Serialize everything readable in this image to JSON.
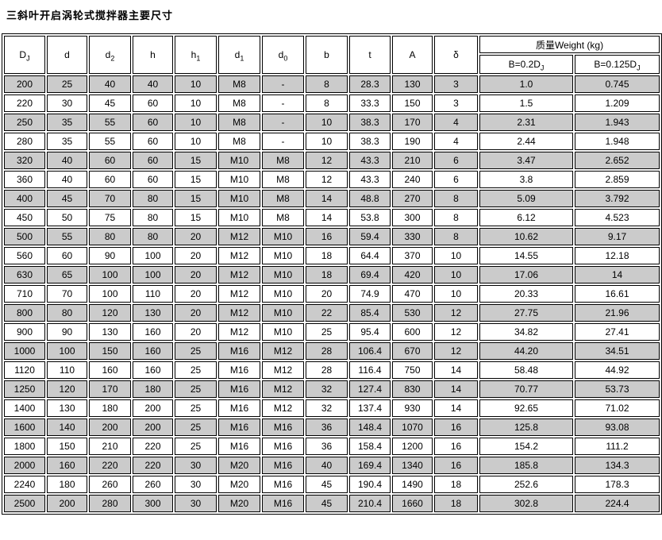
{
  "title": "三斜叶开启涡轮式搅拌器主要尺寸",
  "colors": {
    "row_shade": "#cbcbcb",
    "border": "#000000",
    "text": "#000000",
    "background": "#ffffff"
  },
  "chart_data": {
    "type": "table",
    "title": "三斜叶开启涡轮式搅拌器主要尺寸",
    "columns": [
      {
        "main": "D",
        "sub": "J"
      },
      {
        "main": "d",
        "sub": ""
      },
      {
        "main": "d",
        "sub": "2"
      },
      {
        "main": "h",
        "sub": ""
      },
      {
        "main": "h",
        "sub": "1"
      },
      {
        "main": "d",
        "sub": "1"
      },
      {
        "main": "d",
        "sub": "0"
      },
      {
        "main": "b",
        "sub": ""
      },
      {
        "main": "t",
        "sub": ""
      },
      {
        "main": "A",
        "sub": ""
      },
      {
        "main": "δ",
        "sub": ""
      }
    ],
    "weight_group": {
      "label": "质量Weight (kg)",
      "sub_columns": [
        {
          "main": "B=0.2D",
          "sub": "J"
        },
        {
          "main": "B=0.125D",
          "sub": "J"
        }
      ]
    },
    "rows": [
      [
        "200",
        "25",
        "40",
        "40",
        "10",
        "M8",
        "-",
        "8",
        "28.3",
        "130",
        "3",
        "1.0",
        "0.745"
      ],
      [
        "220",
        "30",
        "45",
        "60",
        "10",
        "M8",
        "-",
        "8",
        "33.3",
        "150",
        "3",
        "1.5",
        "1.209"
      ],
      [
        "250",
        "35",
        "55",
        "60",
        "10",
        "M8",
        "-",
        "10",
        "38.3",
        "170",
        "4",
        "2.31",
        "1.943"
      ],
      [
        "280",
        "35",
        "55",
        "60",
        "10",
        "M8",
        "-",
        "10",
        "38.3",
        "190",
        "4",
        "2.44",
        "1.948"
      ],
      [
        "320",
        "40",
        "60",
        "60",
        "15",
        "M10",
        "M8",
        "12",
        "43.3",
        "210",
        "6",
        "3.47",
        "2.652"
      ],
      [
        "360",
        "40",
        "60",
        "60",
        "15",
        "M10",
        "M8",
        "12",
        "43.3",
        "240",
        "6",
        "3.8",
        "2.859"
      ],
      [
        "400",
        "45",
        "70",
        "80",
        "15",
        "M10",
        "M8",
        "14",
        "48.8",
        "270",
        "8",
        "5.09",
        "3.792"
      ],
      [
        "450",
        "50",
        "75",
        "80",
        "15",
        "M10",
        "M8",
        "14",
        "53.8",
        "300",
        "8",
        "6.12",
        "4.523"
      ],
      [
        "500",
        "55",
        "80",
        "80",
        "20",
        "M12",
        "M10",
        "16",
        "59.4",
        "330",
        "8",
        "10.62",
        "9.17"
      ],
      [
        "560",
        "60",
        "90",
        "100",
        "20",
        "M12",
        "M10",
        "18",
        "64.4",
        "370",
        "10",
        "14.55",
        "12.18"
      ],
      [
        "630",
        "65",
        "100",
        "100",
        "20",
        "M12",
        "M10",
        "18",
        "69.4",
        "420",
        "10",
        "17.06",
        "14"
      ],
      [
        "710",
        "70",
        "100",
        "110",
        "20",
        "M12",
        "M10",
        "20",
        "74.9",
        "470",
        "10",
        "20.33",
        "16.61"
      ],
      [
        "800",
        "80",
        "120",
        "130",
        "20",
        "M12",
        "M10",
        "22",
        "85.4",
        "530",
        "12",
        "27.75",
        "21.96"
      ],
      [
        "900",
        "90",
        "130",
        "160",
        "20",
        "M12",
        "M10",
        "25",
        "95.4",
        "600",
        "12",
        "34.82",
        "27.41"
      ],
      [
        "1000",
        "100",
        "150",
        "160",
        "25",
        "M16",
        "M12",
        "28",
        "106.4",
        "670",
        "12",
        "44.20",
        "34.51"
      ],
      [
        "1120",
        "110",
        "160",
        "160",
        "25",
        "M16",
        "M12",
        "28",
        "116.4",
        "750",
        "14",
        "58.48",
        "44.92"
      ],
      [
        "1250",
        "120",
        "170",
        "180",
        "25",
        "M16",
        "M12",
        "32",
        "127.4",
        "830",
        "14",
        "70.77",
        "53.73"
      ],
      [
        "1400",
        "130",
        "180",
        "200",
        "25",
        "M16",
        "M12",
        "32",
        "137.4",
        "930",
        "14",
        "92.65",
        "71.02"
      ],
      [
        "1600",
        "140",
        "200",
        "200",
        "25",
        "M16",
        "M16",
        "36",
        "148.4",
        "1070",
        "16",
        "125.8",
        "93.08"
      ],
      [
        "1800",
        "150",
        "210",
        "220",
        "25",
        "M16",
        "M16",
        "36",
        "158.4",
        "1200",
        "16",
        "154.2",
        "111.2"
      ],
      [
        "2000",
        "160",
        "220",
        "220",
        "30",
        "M20",
        "M16",
        "40",
        "169.4",
        "1340",
        "16",
        "185.8",
        "134.3"
      ],
      [
        "2240",
        "180",
        "260",
        "260",
        "30",
        "M20",
        "M16",
        "45",
        "190.4",
        "1490",
        "18",
        "252.6",
        "178.3"
      ],
      [
        "2500",
        "200",
        "280",
        "300",
        "30",
        "M20",
        "M16",
        "45",
        "210.4",
        "1660",
        "18",
        "302.8",
        "224.4"
      ]
    ]
  }
}
